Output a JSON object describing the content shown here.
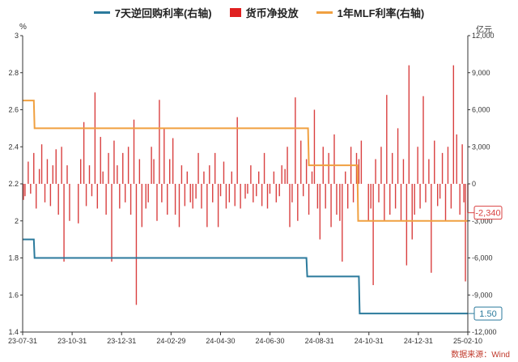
{
  "legend": {
    "items": [
      {
        "label": "7天逆回购利率(右轴)",
        "color": "#2b7a9c",
        "kind": "line"
      },
      {
        "label": "货币净投放",
        "color": "#e02020",
        "kind": "box"
      },
      {
        "label": "1年MLF利率(右轴)",
        "color": "#f0a040",
        "kind": "line"
      }
    ]
  },
  "source_text": "数据来源：Wind",
  "chart_data": {
    "type": "bar",
    "left_axis": {
      "unit": "%",
      "ylim": [
        1.4,
        3.0
      ],
      "ticks": [
        "3",
        "2.8",
        "2.6",
        "2.4",
        "2.2",
        "2",
        "1.8",
        "1.6",
        "1.4"
      ]
    },
    "right_axis": {
      "unit": "亿元",
      "ylim": [
        -12000,
        12000
      ],
      "ticks": [
        "12,000",
        "9,000",
        "6,000",
        "3,000",
        "0",
        "-3,000",
        "-6,000",
        "-9,000",
        "-12,000"
      ]
    },
    "x_ticks": [
      "23-07-31",
      "23-10-31",
      "23-12-31",
      "24-02-29",
      "24-04-30",
      "24-06-30",
      "24-08-31",
      "24-10-31",
      "24-12-31",
      "25-02-10"
    ],
    "x_range": [
      "2023-07-31",
      "2025-02-10"
    ],
    "series": [
      {
        "name": "7天逆回购利率(右轴)",
        "type": "line",
        "axis": "left",
        "color": "#2b7a9c",
        "points": [
          [
            "2023-07-31",
            1.9
          ],
          [
            "2023-08-14",
            1.9
          ],
          [
            "2023-08-15",
            1.8
          ],
          [
            "2024-06-30",
            1.8
          ],
          [
            "2024-07-22",
            1.8
          ],
          [
            "2024-07-23",
            1.7
          ],
          [
            "2024-09-26",
            1.7
          ],
          [
            "2024-09-27",
            1.5
          ],
          [
            "2025-02-10",
            1.5
          ]
        ]
      },
      {
        "name": "1年MLF利率(右轴)",
        "type": "line",
        "axis": "left",
        "color": "#f0a040",
        "points": [
          [
            "2023-07-31",
            2.65
          ],
          [
            "2023-08-14",
            2.65
          ],
          [
            "2023-08-15",
            2.5
          ],
          [
            "2024-07-24",
            2.5
          ],
          [
            "2024-07-25",
            2.3
          ],
          [
            "2024-09-24",
            2.3
          ],
          [
            "2024-09-25",
            2.0
          ],
          [
            "2025-02-10",
            2.0
          ]
        ]
      },
      {
        "name": "货币净投放",
        "type": "bar",
        "axis": "right",
        "color": "#d94040",
        "points": [
          [
            "2023-08-01",
            -1300
          ],
          [
            "2023-08-03",
            -1000
          ],
          [
            "2023-08-07",
            1800
          ],
          [
            "2023-08-10",
            -800
          ],
          [
            "2023-08-14",
            2500
          ],
          [
            "2023-08-17",
            -2000
          ],
          [
            "2023-08-21",
            1200
          ],
          [
            "2023-08-24",
            3200
          ],
          [
            "2023-08-28",
            -1500
          ],
          [
            "2023-08-31",
            2000
          ],
          [
            "2023-09-04",
            -1800
          ],
          [
            "2023-09-07",
            1500
          ],
          [
            "2023-09-11",
            2800
          ],
          [
            "2023-09-14",
            -2500
          ],
          [
            "2023-09-18",
            3000
          ],
          [
            "2023-09-21",
            -6300
          ],
          [
            "2023-09-25",
            1500
          ],
          [
            "2023-09-28",
            -3000
          ],
          [
            "2023-10-09",
            -3200
          ],
          [
            "2023-10-12",
            2000
          ],
          [
            "2023-10-16",
            5000
          ],
          [
            "2023-10-19",
            -1800
          ],
          [
            "2023-10-23",
            1500
          ],
          [
            "2023-10-26",
            -1000
          ],
          [
            "2023-10-30",
            7400
          ],
          [
            "2023-11-02",
            -2000
          ],
          [
            "2023-11-06",
            3800
          ],
          [
            "2023-11-09",
            1000
          ],
          [
            "2023-11-13",
            -2500
          ],
          [
            "2023-11-16",
            2500
          ],
          [
            "2023-11-20",
            -6300
          ],
          [
            "2023-11-23",
            3500
          ],
          [
            "2023-11-27",
            1500
          ],
          [
            "2023-11-30",
            -2000
          ],
          [
            "2023-12-04",
            2500
          ],
          [
            "2023-12-07",
            -1500
          ],
          [
            "2023-12-11",
            3000
          ],
          [
            "2023-12-14",
            -2500
          ],
          [
            "2023-12-18",
            5200
          ],
          [
            "2023-12-21",
            -9800
          ],
          [
            "2023-12-25",
            2000
          ],
          [
            "2023-12-28",
            -3500
          ],
          [
            "2024-01-02",
            -2000
          ],
          [
            "2024-01-05",
            -1500
          ],
          [
            "2024-01-09",
            3000
          ],
          [
            "2024-01-12",
            2000
          ],
          [
            "2024-01-16",
            -3000
          ],
          [
            "2024-01-19",
            6800
          ],
          [
            "2024-01-22",
            -1500
          ],
          [
            "2024-01-25",
            4500
          ],
          [
            "2024-01-29",
            -2500
          ],
          [
            "2024-02-01",
            2000
          ],
          [
            "2024-02-05",
            3700
          ],
          [
            "2024-02-08",
            -2500
          ],
          [
            "2024-02-13",
            -3500
          ],
          [
            "2024-02-16",
            1500
          ],
          [
            "2024-02-20",
            -1800
          ],
          [
            "2024-02-23",
            1000
          ],
          [
            "2024-02-27",
            -1500
          ],
          [
            "2024-03-01",
            -2000
          ],
          [
            "2024-03-05",
            -1200
          ],
          [
            "2024-03-08",
            2500
          ],
          [
            "2024-03-12",
            -2000
          ],
          [
            "2024-03-15",
            1000
          ],
          [
            "2024-03-19",
            -3500
          ],
          [
            "2024-03-22",
            1500
          ],
          [
            "2024-03-26",
            -1500
          ],
          [
            "2024-03-29",
            2500
          ],
          [
            "2024-04-02",
            -3500
          ],
          [
            "2024-04-05",
            -1000
          ],
          [
            "2024-04-09",
            1800
          ],
          [
            "2024-04-12",
            -2000
          ],
          [
            "2024-04-16",
            -1500
          ],
          [
            "2024-04-19",
            1000
          ],
          [
            "2024-04-23",
            -1800
          ],
          [
            "2024-04-26",
            5400
          ],
          [
            "2024-04-30",
            -2000
          ],
          [
            "2024-05-06",
            -1200
          ],
          [
            "2024-05-09",
            -800
          ],
          [
            "2024-05-13",
            1500
          ],
          [
            "2024-05-16",
            -1500
          ],
          [
            "2024-05-20",
            -1000
          ],
          [
            "2024-05-23",
            1000
          ],
          [
            "2024-05-27",
            -1800
          ],
          [
            "2024-05-30",
            2500
          ],
          [
            "2024-06-03",
            -2000
          ],
          [
            "2024-06-06",
            -800
          ],
          [
            "2024-06-11",
            1000
          ],
          [
            "2024-06-14",
            -1500
          ],
          [
            "2024-06-18",
            -1000
          ],
          [
            "2024-06-21",
            1500
          ],
          [
            "2024-06-25",
            1200
          ],
          [
            "2024-06-28",
            3000
          ],
          [
            "2024-07-01",
            -3500
          ],
          [
            "2024-07-04",
            -1500
          ],
          [
            "2024-07-08",
            7000
          ],
          [
            "2024-07-11",
            -3000
          ],
          [
            "2024-07-15",
            3500
          ],
          [
            "2024-07-18",
            -1000
          ],
          [
            "2024-07-22",
            2000
          ],
          [
            "2024-07-25",
            -2500
          ],
          [
            "2024-07-29",
            1000
          ],
          [
            "2024-08-01",
            6000
          ],
          [
            "2024-08-05",
            -2000
          ],
          [
            "2024-08-08",
            -4500
          ],
          [
            "2024-08-12",
            3000
          ],
          [
            "2024-08-15",
            -2000
          ],
          [
            "2024-08-19",
            2500
          ],
          [
            "2024-08-22",
            -3500
          ],
          [
            "2024-08-26",
            4000
          ],
          [
            "2024-08-29",
            -2500
          ],
          [
            "2024-09-02",
            -3000
          ],
          [
            "2024-09-05",
            -6300
          ],
          [
            "2024-09-09",
            1000
          ],
          [
            "2024-09-12",
            -2000
          ],
          [
            "2024-09-16",
            3000
          ],
          [
            "2024-09-19",
            -1500
          ],
          [
            "2024-09-23",
            2500
          ],
          [
            "2024-09-26",
            2000
          ],
          [
            "2024-09-29",
            3500
          ],
          [
            "2024-10-08",
            -3000
          ],
          [
            "2024-10-11",
            -2000
          ],
          [
            "2024-10-14",
            -8200
          ],
          [
            "2024-10-17",
            2000
          ],
          [
            "2024-10-21",
            -1500
          ],
          [
            "2024-10-24",
            3000
          ],
          [
            "2024-10-28",
            -3000
          ],
          [
            "2024-10-31",
            7200
          ],
          [
            "2024-11-04",
            -2500
          ],
          [
            "2024-11-07",
            2500
          ],
          [
            "2024-11-11",
            -2000
          ],
          [
            "2024-11-14",
            4500
          ],
          [
            "2024-11-18",
            -3000
          ],
          [
            "2024-11-21",
            2000
          ],
          [
            "2024-11-25",
            -6600
          ],
          [
            "2024-11-28",
            9600
          ],
          [
            "2024-12-02",
            -4500
          ],
          [
            "2024-12-05",
            -2500
          ],
          [
            "2024-12-09",
            3000
          ],
          [
            "2024-12-12",
            -2000
          ],
          [
            "2024-12-16",
            7100
          ],
          [
            "2024-12-19",
            -1500
          ],
          [
            "2024-12-23",
            2000
          ],
          [
            "2024-12-26",
            -7200
          ],
          [
            "2024-12-30",
            3500
          ],
          [
            "2025-01-03",
            -1800
          ],
          [
            "2025-01-06",
            -1200
          ],
          [
            "2025-01-09",
            2500
          ],
          [
            "2025-01-13",
            -3000
          ],
          [
            "2025-01-16",
            3000
          ],
          [
            "2025-01-20",
            -2000
          ],
          [
            "2025-01-23",
            9600
          ],
          [
            "2025-01-27",
            4000
          ],
          [
            "2025-01-31",
            -2500
          ],
          [
            "2025-02-03",
            3200
          ],
          [
            "2025-02-05",
            -1500
          ],
          [
            "2025-02-07",
            -7900
          ],
          [
            "2025-02-10",
            -2340
          ]
        ]
      }
    ],
    "annotations": [
      {
        "text": "-2,340",
        "color": "#d94040",
        "series": "货币净投放",
        "value": -2340
      },
      {
        "text": "1.50",
        "color": "#2b7a9c",
        "series": "7天逆回购利率(右轴)",
        "value": 1.5
      }
    ]
  }
}
